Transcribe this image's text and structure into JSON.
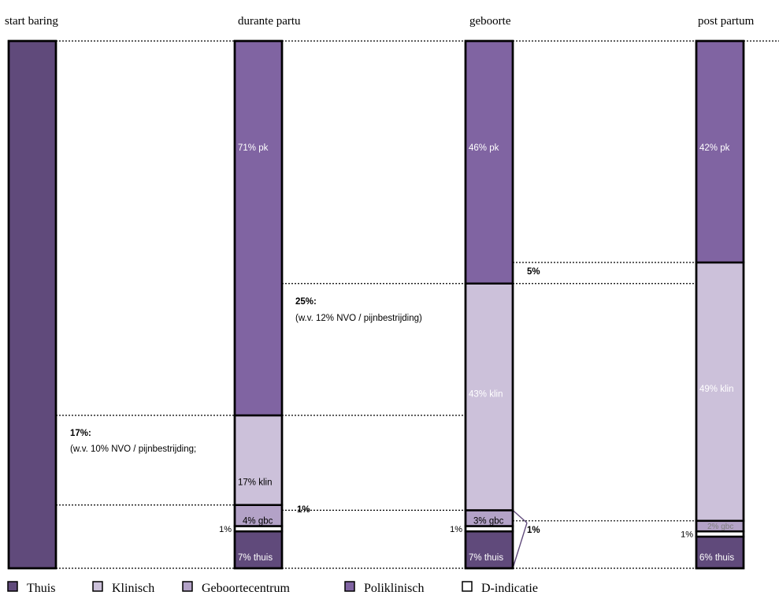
{
  "chart_data": {
    "type": "bar",
    "layout": "stacked-100",
    "categories": [
      "start baring",
      "durante partu",
      "geboorte",
      "post partum"
    ],
    "series": [
      {
        "name": "Thuis",
        "color": "#604a7b",
        "values": [
          100,
          7,
          7,
          6
        ]
      },
      {
        "name": "D-indicatie",
        "color": "#ffffff",
        "values": [
          0,
          1,
          1,
          1
        ]
      },
      {
        "name": "Geboortecentrum",
        "color": "#b3a2c7",
        "values": [
          0,
          4,
          3,
          2
        ]
      },
      {
        "name": "Klinisch",
        "color": "#ccc1da",
        "values": [
          0,
          17,
          43,
          49
        ]
      },
      {
        "name": "Poliklinisch",
        "color": "#8064a2",
        "values": [
          0,
          71,
          46,
          42
        ]
      }
    ],
    "segment_labels": [
      [
        ""
      ],
      [
        "7% thuis",
        "1%",
        "4% gbc",
        "17% klin",
        "71% pk"
      ],
      [
        "7% thuis",
        "1%",
        "3% gbc",
        "43% klin",
        "46% pk"
      ],
      [
        "6% thuis",
        "1%",
        "2% gbc",
        "49% klin",
        "42% pk"
      ]
    ],
    "transitions": [
      {
        "text": "17%:",
        "note": "(w.v. 10% NVO / pijnbestrijding;"
      },
      {
        "text": "1%",
        "note": ""
      },
      {
        "text": "25%:",
        "note": "(w.v. 12% NVO / pijnbestrijding)"
      },
      {
        "text": "5%",
        "note": ""
      },
      {
        "text": "1%",
        "note": ""
      }
    ],
    "legend": {
      "position": "bottom",
      "items": [
        "Thuis",
        "Klinisch",
        "Geboortecentrum",
        "Poliklinisch",
        "D-indicatie"
      ],
      "colors": [
        "#604a7b",
        "#ccc1da",
        "#b3a2c7",
        "#8064a2",
        "#ffffff"
      ]
    },
    "title": "",
    "ylim": [
      0,
      100
    ]
  }
}
